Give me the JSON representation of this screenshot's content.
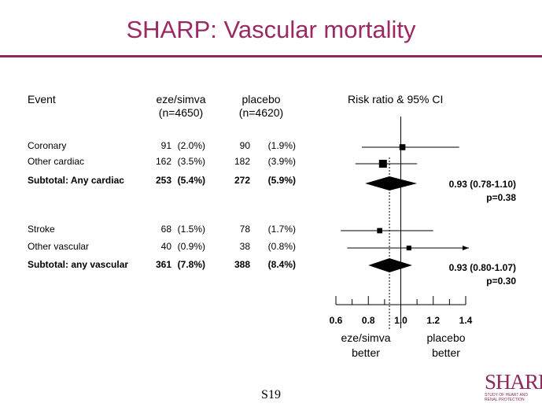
{
  "title": "SHARP: Vascular mortality",
  "headers": {
    "event": "Event",
    "group1": "eze/simva",
    "group1_n": "(n=4650)",
    "group2": "placebo",
    "group2_n": "(n=4620)",
    "ratio": "Risk ratio & 95% CI"
  },
  "chart_data": {
    "type": "forest",
    "xaxis": {
      "ticks": [
        "0.6",
        "0.8",
        "1.0",
        "1.2",
        "1.4"
      ],
      "tick_values": [
        0.6,
        0.8,
        1.0,
        1.2,
        1.4
      ],
      "range": [
        0.6,
        1.4
      ]
    },
    "reference_line": 1.0,
    "left_label": [
      "eze/simva",
      "better"
    ],
    "right_label": [
      "placebo",
      "better"
    ],
    "rows": [
      {
        "label": "Coronary",
        "n1": "91",
        "p1": "(2.0%)",
        "n2": "90",
        "p2": "(1.9%)",
        "rr": 1.01,
        "lo": 0.76,
        "hi": 1.36,
        "weight": 0.6,
        "kind": "square",
        "bold": false
      },
      {
        "label": "Other cardiac",
        "n1": "162",
        "p1": "(3.5%)",
        "n2": "182",
        "p2": "(3.9%)",
        "rr": 0.89,
        "lo": 0.72,
        "hi": 1.1,
        "weight": 1.0,
        "kind": "square",
        "bold": false
      },
      {
        "label": "Subtotal: Any cardiac",
        "n1": "253",
        "p1": "(5.4%)",
        "n2": "272",
        "p2": "(5.9%)",
        "rr": 0.93,
        "lo": 0.78,
        "hi": 1.1,
        "kind": "diamond",
        "bold": true
      },
      {
        "label": "Stroke",
        "n1": "68",
        "p1": "(1.5%)",
        "n2": "78",
        "p2": "(1.7%)",
        "rr": 0.87,
        "lo": 0.63,
        "hi": 1.2,
        "weight": 0.45,
        "kind": "square",
        "bold": false
      },
      {
        "label": "Other vascular",
        "n1": "40",
        "p1": "(0.9%)",
        "n2": "38",
        "p2": "(0.8%)",
        "rr": 1.05,
        "lo": 0.67,
        "hi": 1.4,
        "weight": 0.35,
        "kind": "square",
        "arrow": true,
        "bold": false
      },
      {
        "label": "Subtotal: any vascular",
        "n1": "361",
        "p1": "(7.8%)",
        "n2": "388",
        "p2": "(8.4%)",
        "rr": 0.93,
        "lo": 0.8,
        "hi": 1.07,
        "kind": "diamond",
        "bold": true
      }
    ],
    "summaries": [
      {
        "ci_text": "0.93 (0.78-1.10)",
        "p_text": "p=0.38"
      },
      {
        "ci_text": "0.93 (0.80-1.07)",
        "p_text": "p=0.30"
      }
    ]
  },
  "footer": "S19",
  "logo": {
    "word": "SHARP",
    "sub1": "Study of Heart and",
    "sub2": "Renal Protection",
    "color": "#8e2a5a"
  }
}
